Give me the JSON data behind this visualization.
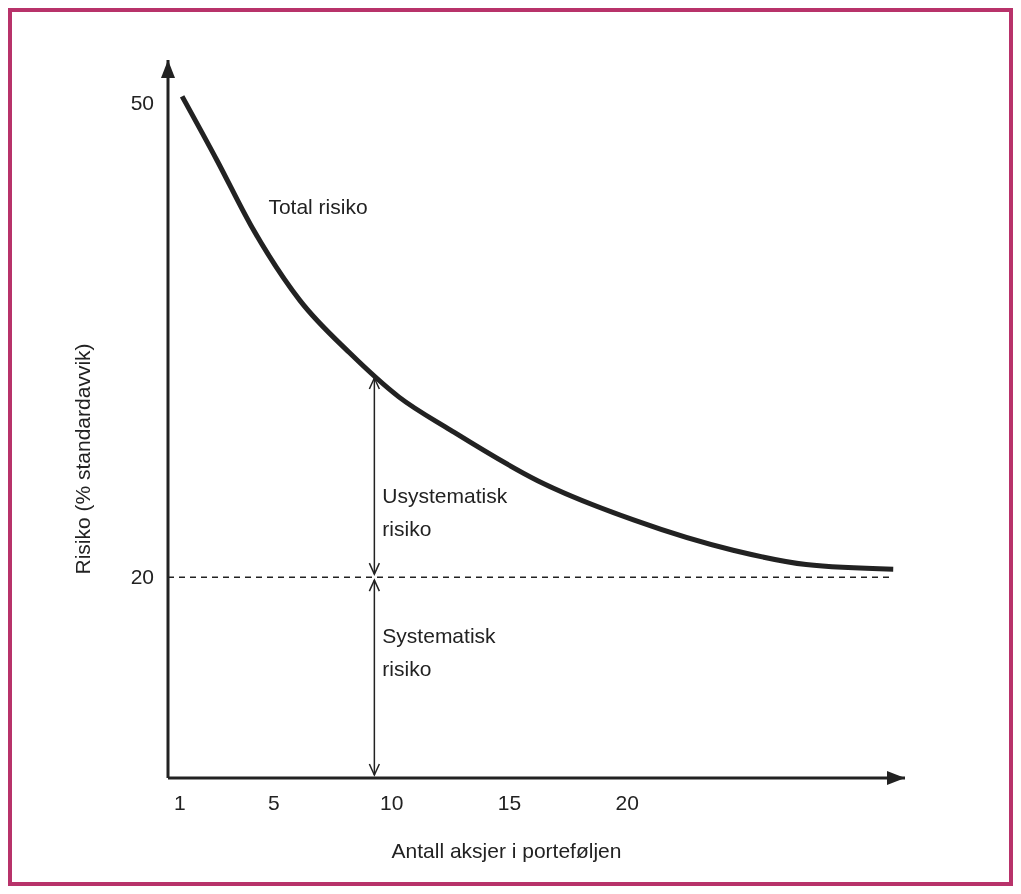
{
  "chart_data": {
    "type": "line",
    "xlabel": "Antall aksjer i porteføljen",
    "ylabel": "Risiko (% standardavvik)",
    "x": [
      1.1,
      2.6,
      4.0,
      6.1,
      8.2,
      10.3,
      12.5,
      16.2,
      20.3,
      24.5,
      27.6,
      31.3
    ],
    "series": [
      {
        "name": "Total risiko",
        "color": "#222222",
        "values": [
          50.4,
          46.3,
          42.3,
          37.5,
          34.2,
          31.4,
          29.3,
          26.1,
          23.6,
          21.7,
          20.8,
          20.5
        ]
      }
    ],
    "xlim": [
      0.5,
      31.8
    ],
    "xticks": [
      1,
      5,
      10,
      15,
      20
    ],
    "ylim": [
      7.3,
      52.7
    ],
    "yticks": [
      20,
      50
    ],
    "ref_lines": [
      {
        "axis": "y",
        "value": 20,
        "line_style": "dashed",
        "color": "#222222"
      }
    ],
    "annotations": [
      "Usystematisk\nrisiko",
      "Systematisk\nrisiko"
    ],
    "grid": false,
    "marker": "none",
    "line_style": "solid"
  }
}
